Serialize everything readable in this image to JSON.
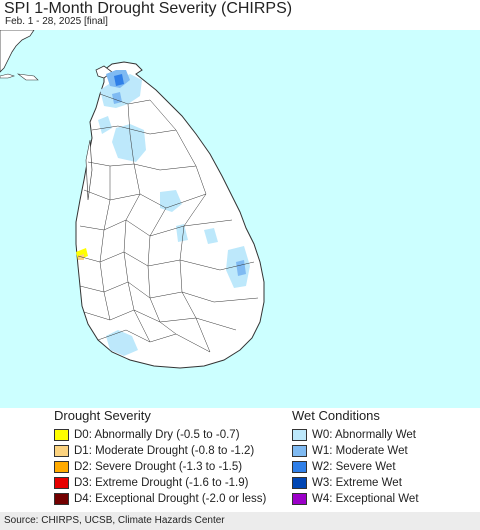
{
  "title": "SPI 1-Month Drought Severity (CHIRPS)",
  "subtitle": "Feb. 1 - 28, 2025 [final]",
  "colors": {
    "ocean": "#ccffff",
    "land": "#ffffff",
    "border": "#333333",
    "W0": "#bde8fb",
    "W1": "#7fbaf2",
    "W2": "#2f7fe8",
    "W3": "#0046b4",
    "W4": "#9b00c8",
    "D0": "#ffff00",
    "D1": "#fcd37f",
    "D2": "#ffaa00",
    "D3": "#e60000",
    "D4": "#730000"
  },
  "legend": {
    "drought_title": "Drought Severity",
    "drought_items": [
      {
        "code": "D0",
        "label": "D0: Abnormally Dry (-0.5 to -0.7)",
        "color": "#ffff00"
      },
      {
        "code": "D1",
        "label": "D1: Moderate Drought (-0.8 to -1.2)",
        "color": "#fcd37f"
      },
      {
        "code": "D2",
        "label": "D2: Severe Drought (-1.3 to -1.5)",
        "color": "#ffaa00"
      },
      {
        "code": "D3",
        "label": "D3: Extreme Drought (-1.6 to -1.9)",
        "color": "#e60000"
      },
      {
        "code": "D4",
        "label": "D4: Exceptional Drought (-2.0 or less)",
        "color": "#730000"
      }
    ],
    "wet_title": "Wet Conditions",
    "wet_items": [
      {
        "code": "W0",
        "label": "W0: Abnormally Wet",
        "color": "#bde8fb"
      },
      {
        "code": "W1",
        "label": "W1: Moderate Wet",
        "color": "#7fbaf2"
      },
      {
        "code": "W2",
        "label": "W2: Severe Wet",
        "color": "#2f7fe8"
      },
      {
        "code": "W3",
        "label": "W3: Extreme Wet",
        "color": "#0046b4"
      },
      {
        "code": "W4",
        "label": "W4: Exceptional Wet",
        "color": "#9b00c8"
      }
    ]
  },
  "footer": "Source: CHIRPS, UCSB, Climate Hazards Center"
}
